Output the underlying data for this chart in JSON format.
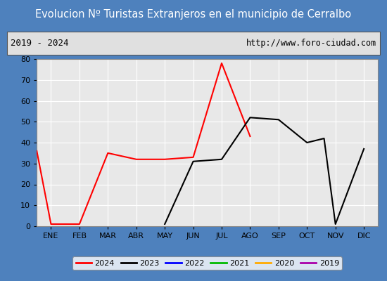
{
  "title": "Evolucion Nº Turistas Extranjeros en el municipio de Cerralbo",
  "subtitle_left": "2019 - 2024",
  "subtitle_right": "http://www.foro-ciudad.com",
  "x_labels": [
    "ENE",
    "FEB",
    "MAR",
    "ABR",
    "MAY",
    "JUN",
    "JUL",
    "AGO",
    "SEP",
    "OCT",
    "NOV",
    "DIC"
  ],
  "ylim": [
    0,
    80
  ],
  "yticks": [
    0,
    10,
    20,
    30,
    40,
    50,
    60,
    70,
    80
  ],
  "x_2024": [
    -0.5,
    0,
    1,
    2,
    3,
    4,
    5,
    6,
    7
  ],
  "y_2024": [
    36,
    1,
    1,
    35,
    32,
    32,
    33,
    78,
    43
  ],
  "x_2023": [
    4,
    5,
    6,
    7,
    8,
    9,
    9.3,
    9.6,
    10,
    11
  ],
  "y_2023": [
    1,
    31,
    32,
    52,
    51,
    40,
    41,
    42,
    1,
    37
  ],
  "title_bg": "#4e81bd",
  "title_color": "#ffffff",
  "subtitle_bg": "#e0e0e0",
  "plot_bg": "#e8e8e8",
  "grid_color": "#ffffff",
  "fig_bg": "#4e81bd",
  "legend_labels": [
    "2024",
    "2023",
    "2022",
    "2021",
    "2020",
    "2019"
  ],
  "legend_colors": [
    "#ff0000",
    "#000000",
    "#0000ff",
    "#00bb00",
    "#ffaa00",
    "#aa00aa"
  ]
}
